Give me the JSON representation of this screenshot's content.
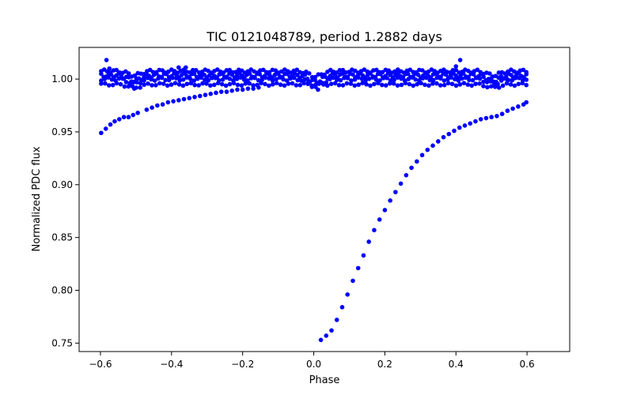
{
  "chart_data": {
    "type": "scatter",
    "title": "TIC 0121048789, period 1.2882 days",
    "xlabel": "Phase",
    "ylabel": "Normalized PDC flux",
    "xlim": [
      -0.66,
      0.72
    ],
    "ylim": [
      0.742,
      1.03
    ],
    "xticks": [
      -0.6,
      -0.4,
      -0.2,
      0.0,
      0.2,
      0.4,
      0.6
    ],
    "xtick_labels": [
      "−0.6",
      "−0.4",
      "−0.2",
      "0.0",
      "0.2",
      "0.4",
      "0.6"
    ],
    "yticks": [
      0.75,
      0.8,
      0.85,
      0.9,
      0.95,
      1.0
    ],
    "ytick_labels": [
      "0.75",
      "0.80",
      "0.85",
      "0.90",
      "0.95",
      "1.00"
    ],
    "grid": false,
    "marker_color": "#0000ff",
    "series": [
      {
        "name": "",
        "points": [
          [
            -0.598,
            0.949
          ],
          [
            -0.585,
            0.953
          ],
          [
            -0.572,
            0.957
          ],
          [
            -0.56,
            0.96
          ],
          [
            -0.547,
            0.962
          ],
          [
            -0.534,
            0.964
          ],
          [
            -0.521,
            0.964
          ],
          [
            -0.508,
            0.966
          ],
          [
            -0.495,
            0.968
          ],
          [
            -0.47,
            0.971
          ],
          [
            -0.455,
            0.973
          ],
          [
            -0.44,
            0.975
          ],
          [
            -0.425,
            0.976
          ],
          [
            -0.41,
            0.978
          ],
          [
            -0.395,
            0.979
          ],
          [
            -0.38,
            0.98
          ],
          [
            -0.365,
            0.981
          ],
          [
            -0.35,
            0.982
          ],
          [
            -0.335,
            0.983
          ],
          [
            -0.32,
            0.984
          ],
          [
            -0.305,
            0.985
          ],
          [
            -0.29,
            0.986
          ],
          [
            -0.275,
            0.987
          ],
          [
            -0.26,
            0.988
          ],
          [
            -0.245,
            0.988
          ],
          [
            -0.23,
            0.989
          ],
          [
            -0.215,
            0.99
          ],
          [
            -0.2,
            0.99
          ],
          [
            -0.185,
            0.991
          ],
          [
            -0.17,
            0.991
          ],
          [
            -0.155,
            0.992
          ],
          [
            0.02,
            0.753
          ],
          [
            0.035,
            0.757
          ],
          [
            0.05,
            0.762
          ],
          [
            0.065,
            0.772
          ],
          [
            0.08,
            0.784
          ],
          [
            0.095,
            0.796
          ],
          [
            0.11,
            0.809
          ],
          [
            0.125,
            0.821
          ],
          [
            0.14,
            0.833
          ],
          [
            0.155,
            0.846
          ],
          [
            0.17,
            0.857
          ],
          [
            0.185,
            0.867
          ],
          [
            0.2,
            0.876
          ],
          [
            0.215,
            0.885
          ],
          [
            0.23,
            0.893
          ],
          [
            0.245,
            0.901
          ],
          [
            0.26,
            0.909
          ],
          [
            0.275,
            0.916
          ],
          [
            0.29,
            0.922
          ],
          [
            0.305,
            0.928
          ],
          [
            0.32,
            0.933
          ],
          [
            0.335,
            0.937
          ],
          [
            0.35,
            0.941
          ],
          [
            0.365,
            0.945
          ],
          [
            0.38,
            0.948
          ],
          [
            0.395,
            0.951
          ],
          [
            0.41,
            0.954
          ],
          [
            0.425,
            0.956
          ],
          [
            0.44,
            0.958
          ],
          [
            0.455,
            0.96
          ],
          [
            0.47,
            0.962
          ],
          [
            0.485,
            0.963
          ],
          [
            0.5,
            0.964
          ],
          [
            0.515,
            0.965
          ],
          [
            0.53,
            0.967
          ],
          [
            0.545,
            0.97
          ],
          [
            0.56,
            0.972
          ],
          [
            0.575,
            0.974
          ],
          [
            0.59,
            0.976
          ],
          [
            0.598,
            0.978
          ],
          [
            -0.583,
            1.018
          ],
          [
            0.412,
            1.018
          ],
          [
            -0.575,
            1.01
          ],
          [
            0.4,
            1.012
          ],
          [
            -0.505,
            0.991
          ],
          [
            0.012,
            0.99
          ],
          [
            -0.38,
            1.011
          ],
          [
            -0.36,
            1.011
          ],
          [
            0.545,
            0.999
          ],
          [
            0.56,
            1.0
          ]
        ],
        "bands": [
          {
            "center": 1.0075,
            "spread": 0.0015,
            "dips": [
              [
                -0.505,
                0.004
              ],
              [
                0.005,
                0.005
              ],
              [
                0.505,
                0.004
              ]
            ],
            "count": 140
          },
          {
            "center": 1.0035,
            "spread": 0.002,
            "dips": [
              [
                -0.505,
                0.005
              ],
              [
                0.005,
                0.006
              ],
              [
                0.505,
                0.005
              ]
            ],
            "count": 170
          },
          {
            "center": 1.0,
            "spread": 0.0015,
            "dips": [
              [
                -0.505,
                0.004
              ],
              [
                0.005,
                0.007
              ],
              [
                0.505,
                0.004
              ]
            ],
            "count": 120
          },
          {
            "center": 0.995,
            "spread": 0.0012,
            "dips": [
              [
                -0.505,
                0.003
              ],
              [
                0.505,
                0.003
              ]
            ],
            "count": 110
          }
        ]
      }
    ]
  }
}
